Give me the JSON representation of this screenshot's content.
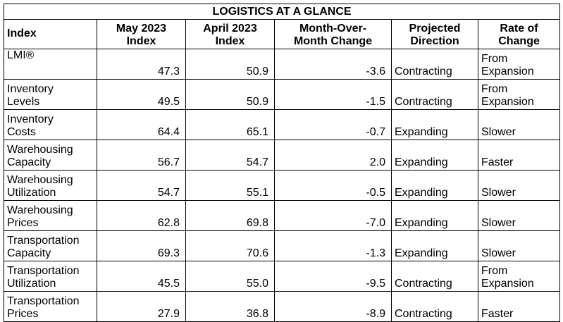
{
  "table": {
    "title": "LOGISTICS AT A GLANCE",
    "headers": [
      {
        "line1": "Index",
        "line2": ""
      },
      {
        "line1": "May 2023",
        "line2": "Index"
      },
      {
        "line1": "April 2023",
        "line2": "Index"
      },
      {
        "line1": "Month-Over-",
        "line2": "Month Change"
      },
      {
        "line1": "Projected",
        "line2": "Direction"
      },
      {
        "line1": "Rate of",
        "line2": "Change"
      }
    ],
    "rows": [
      {
        "index_line1": "LMI®",
        "index_line2": "",
        "may": "47.3",
        "april": "50.9",
        "change": "-3.6",
        "direction": "Contracting",
        "rate_line1": "From",
        "rate_line2": "Expansion"
      },
      {
        "index_line1": "Inventory",
        "index_line2": "Levels",
        "may": "49.5",
        "april": "50.9",
        "change": "-1.5",
        "direction": "Contracting",
        "rate_line1": "From",
        "rate_line2": "Expansion"
      },
      {
        "index_line1": "Inventory",
        "index_line2": "Costs",
        "may": "64.4",
        "april": "65.1",
        "change": "-0.7",
        "direction": "Expanding",
        "rate_line1": "",
        "rate_line2": "Slower"
      },
      {
        "index_line1": "Warehousing",
        "index_line2": "Capacity",
        "may": "56.7",
        "april": "54.7",
        "change": "2.0",
        "direction": "Expanding",
        "rate_line1": "",
        "rate_line2": "Faster"
      },
      {
        "index_line1": "Warehousing",
        "index_line2": "Utilization",
        "may": "54.7",
        "april": "55.1",
        "change": "-0.5",
        "direction": "Expanding",
        "rate_line1": "",
        "rate_line2": "Slower"
      },
      {
        "index_line1": "Warehousing",
        "index_line2": "Prices",
        "may": "62.8",
        "april": "69.8",
        "change": "-7.0",
        "direction": "Expanding",
        "rate_line1": "",
        "rate_line2": "Slower"
      },
      {
        "index_line1": "Transportation",
        "index_line2": "Capacity",
        "may": "69.3",
        "april": "70.6",
        "change": "-1.3",
        "direction": "Expanding",
        "rate_line1": "",
        "rate_line2": "Slower"
      },
      {
        "index_line1": "Transportation",
        "index_line2": "Utilization",
        "may": "45.5",
        "april": "55.0",
        "change": "-9.5",
        "direction": "Contracting",
        "rate_line1": "From",
        "rate_line2": "Expansion"
      },
      {
        "index_line1": "Transportation",
        "index_line2": "Prices",
        "may": "27.9",
        "april": "36.8",
        "change": "-8.9",
        "direction": "Contracting",
        "rate_line1": "",
        "rate_line2": "Faster"
      }
    ]
  }
}
